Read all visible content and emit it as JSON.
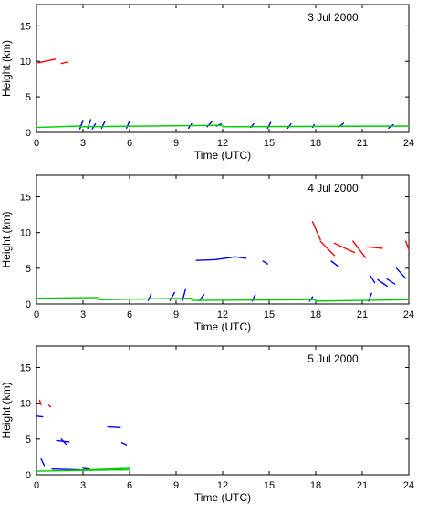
{
  "chart_data": [
    {
      "type": "scatter",
      "title": "",
      "date_label": "3 Jul 2000",
      "xlabel": "Time (UTC)",
      "ylabel": "Height (km)",
      "xlim": [
        0,
        24
      ],
      "ylim": [
        0,
        18
      ],
      "xticks": [
        0,
        3,
        6,
        9,
        12,
        15,
        18,
        21,
        24
      ],
      "yticks": [
        0,
        5,
        10,
        15
      ],
      "grid": false,
      "series": [
        {
          "color": "#ff0000",
          "segments": [
            [
              0.1,
              9.8,
              1.2,
              10.3
            ],
            [
              1.6,
              9.7,
              2.0,
              9.9
            ]
          ]
        },
        {
          "color": "#0000ff",
          "segments": [
            [
              2.8,
              0.5,
              3.0,
              1.7
            ],
            [
              3.3,
              0.6,
              3.5,
              1.8
            ],
            [
              3.6,
              0.5,
              3.8,
              1.2
            ],
            [
              4.2,
              0.6,
              4.4,
              1.5
            ],
            [
              5.8,
              0.6,
              6.0,
              1.6
            ],
            [
              9.8,
              0.6,
              10.0,
              1.2
            ],
            [
              11.0,
              0.8,
              11.3,
              1.5
            ],
            [
              11.6,
              0.9,
              11.9,
              1.2
            ],
            [
              13.8,
              0.7,
              14.0,
              1.2
            ],
            [
              14.9,
              0.6,
              15.1,
              1.4
            ],
            [
              16.2,
              0.6,
              16.4,
              1.2
            ],
            [
              17.8,
              0.7,
              17.9,
              1.1
            ],
            [
              19.5,
              0.8,
              19.8,
              1.3
            ],
            [
              22.7,
              0.6,
              23.0,
              1.1
            ]
          ]
        },
        {
          "color": "#00cc00",
          "segments": [
            [
              0.0,
              0.7,
              2.8,
              0.9
            ],
            [
              2.8,
              0.8,
              12.0,
              1.0
            ],
            [
              12.0,
              0.8,
              24.0,
              0.9
            ]
          ]
        }
      ]
    },
    {
      "type": "scatter",
      "title": "",
      "date_label": "4 Jul 2000",
      "xlabel": "Time (UTC)",
      "ylabel": "Height (km)",
      "xlim": [
        0,
        24
      ],
      "ylim": [
        0,
        18
      ],
      "xticks": [
        0,
        3,
        6,
        9,
        12,
        15,
        18,
        21,
        24
      ],
      "yticks": [
        0,
        5,
        10,
        15
      ],
      "grid": false,
      "series": [
        {
          "color": "#ff0000",
          "segments": [
            [
              17.8,
              11.5,
              18.3,
              9.0
            ],
            [
              18.3,
              8.8,
              19.2,
              6.8
            ],
            [
              19.2,
              8.5,
              20.5,
              7.2
            ],
            [
              20.4,
              8.8,
              21.2,
              6.5
            ],
            [
              21.3,
              8.0,
              22.3,
              7.8
            ],
            [
              23.8,
              8.8,
              24.0,
              7.6
            ]
          ]
        },
        {
          "color": "#0000ff",
          "segments": [
            [
              10.3,
              6.1,
              11.5,
              6.2
            ],
            [
              11.5,
              6.2,
              12.8,
              6.6
            ],
            [
              12.8,
              6.6,
              13.5,
              6.4
            ],
            [
              14.6,
              6.0,
              14.9,
              5.6
            ],
            [
              19.0,
              6.0,
              19.5,
              5.2
            ],
            [
              21.5,
              4.0,
              21.8,
              3.0
            ],
            [
              22.0,
              3.4,
              22.6,
              2.5
            ],
            [
              22.6,
              3.5,
              23.1,
              2.8
            ],
            [
              23.2,
              5.0,
              23.8,
              3.6
            ],
            [
              7.2,
              0.5,
              7.4,
              1.4
            ],
            [
              8.6,
              0.5,
              8.9,
              1.6
            ],
            [
              9.4,
              0.4,
              9.6,
              2.0
            ],
            [
              10.5,
              0.5,
              10.8,
              1.3
            ],
            [
              13.9,
              0.4,
              14.1,
              1.3
            ],
            [
              17.6,
              0.4,
              17.8,
              1.0
            ],
            [
              21.4,
              0.4,
              21.6,
              1.5
            ]
          ]
        },
        {
          "color": "#00cc00",
          "segments": [
            [
              0.0,
              0.8,
              4.0,
              0.9
            ],
            [
              4.0,
              0.6,
              10.0,
              0.8
            ],
            [
              10.0,
              0.5,
              18.0,
              0.6
            ],
            [
              18.0,
              0.4,
              24.0,
              0.6
            ]
          ]
        }
      ]
    },
    {
      "type": "scatter",
      "title": "",
      "date_label": "5 Jul 2000",
      "xlabel": "Time (UTC)",
      "ylabel": "Height (km)",
      "xlim": [
        0,
        24
      ],
      "ylim": [
        0,
        18
      ],
      "xticks": [
        0,
        3,
        6,
        9,
        12,
        15,
        18,
        21,
        24
      ],
      "yticks": [
        0,
        5,
        10,
        15
      ],
      "grid": false,
      "series": [
        {
          "color": "#ff0000",
          "segments": [
            [
              0.2,
              10.4,
              0.3,
              9.8
            ],
            [
              0.8,
              9.7,
              0.9,
              9.5
            ]
          ]
        },
        {
          "color": "#0000ff",
          "segments": [
            [
              0.0,
              8.2,
              0.4,
              8.1
            ],
            [
              1.3,
              4.8,
              2.1,
              4.6
            ],
            [
              1.6,
              5.0,
              1.9,
              4.3
            ],
            [
              4.6,
              6.7,
              5.4,
              6.6
            ],
            [
              5.5,
              4.5,
              5.8,
              4.2
            ],
            [
              0.3,
              2.2,
              0.5,
              1.3
            ],
            [
              1.0,
              0.8,
              2.8,
              0.7
            ],
            [
              3.0,
              0.9,
              3.4,
              0.8
            ],
            [
              4.9,
              0.8,
              5.6,
              0.7
            ]
          ]
        },
        {
          "color": "#00cc00",
          "segments": [
            [
              0.0,
              0.5,
              6.0,
              0.7
            ],
            [
              2.0,
              0.6,
              6.0,
              0.9
            ]
          ]
        }
      ]
    }
  ]
}
